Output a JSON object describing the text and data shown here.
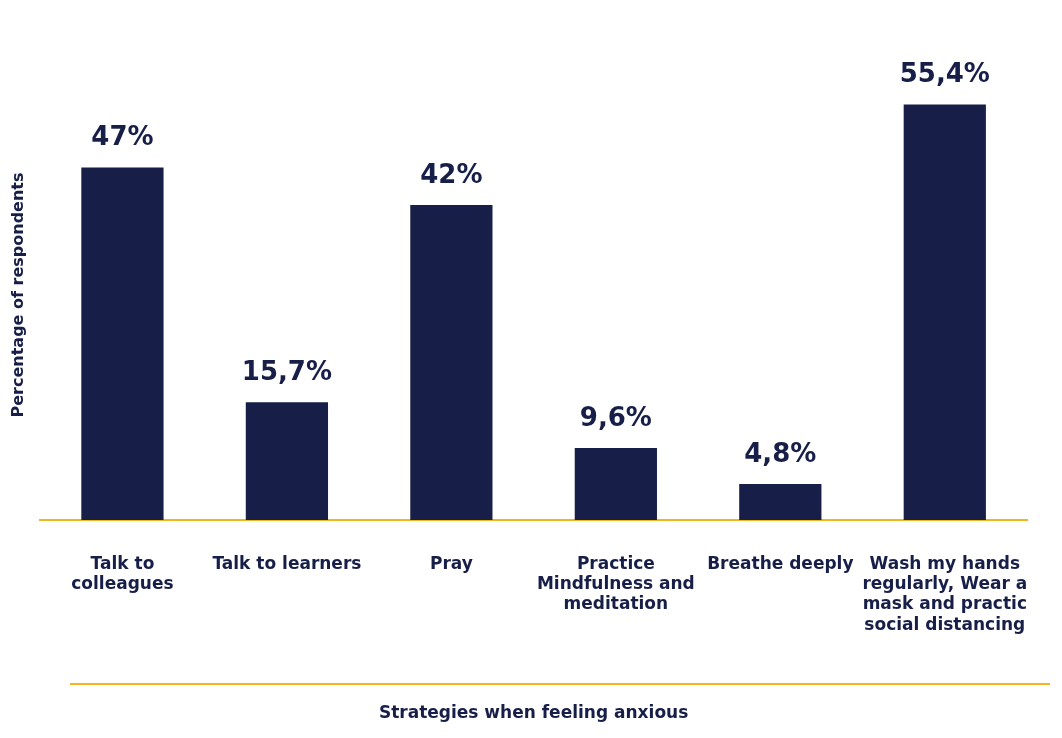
{
  "chart_data": {
    "type": "bar",
    "xlabel": "Strategies when feeling anxious",
    "ylabel": "Percentage of respondents",
    "categories": [
      "Talk to colleagues",
      "Talk to learners",
      "Pray",
      "Practice Mindfulness and meditation",
      "Breathe deeply",
      "Wash my hands regularly, Wear a mask and practic social distancing"
    ],
    "values": [
      47,
      15.7,
      42,
      9.6,
      4.8,
      55.4
    ],
    "value_labels": [
      "47%",
      "15,7%",
      "42%",
      "9,6%",
      "4,8%",
      "55,4%"
    ],
    "color": "#171f48",
    "grid": false,
    "legend": false,
    "tick_labels": "x"
  }
}
